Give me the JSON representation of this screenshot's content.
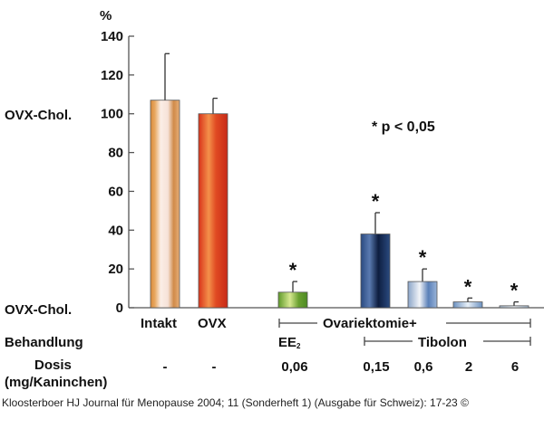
{
  "chart_data": {
    "type": "bar",
    "ylabel_unit": "%",
    "ylim": [
      0,
      140
    ],
    "yticks": [
      0,
      20,
      40,
      60,
      80,
      100,
      120,
      140
    ],
    "y_side_labels": {
      "at_100": "OVX-Chol.",
      "at_0": "OVX-Chol."
    },
    "grid": false,
    "categories": [
      "Intakt",
      "OVX",
      "EE2 0,06",
      "Tibolon 0,15",
      "Tibolon 0,6",
      "Tibolon 2",
      "Tibolon 6"
    ],
    "values": [
      107,
      100,
      8,
      38,
      13.5,
      3,
      1
    ],
    "error_upper": [
      131,
      108,
      13.5,
      49,
      20,
      5,
      3
    ],
    "significant": [
      false,
      false,
      true,
      true,
      true,
      true,
      true
    ],
    "colors": [
      "#e8b07a",
      "#e0401e",
      "#7fae3a",
      "#1e3a6e",
      "#9fb8d8",
      "#8fb0d6",
      "#b8c8d8"
    ],
    "group_labels": {
      "intakt": "Intakt",
      "ovx": "OVX",
      "ovariektomie": "Ovariektomie+",
      "tibolon": "Tibolon",
      "ee2": "EE",
      "ee2_sub": "2"
    },
    "row_labels": {
      "behandlung": "Behandlung",
      "dosis": "Dosis",
      "dosis_unit": "(mg/Kaninchen)"
    },
    "doses": [
      "-",
      "-",
      "0,06",
      "0,15",
      "0,6",
      "2",
      "6"
    ],
    "annotation": "* p < 0,05",
    "significance_marker": "*"
  },
  "caption": "Kloosterboer HJ Journal für Menopause 2004; 11 (Sonderheft 1) (Ausgabe für Schweiz): 17-23 ©"
}
